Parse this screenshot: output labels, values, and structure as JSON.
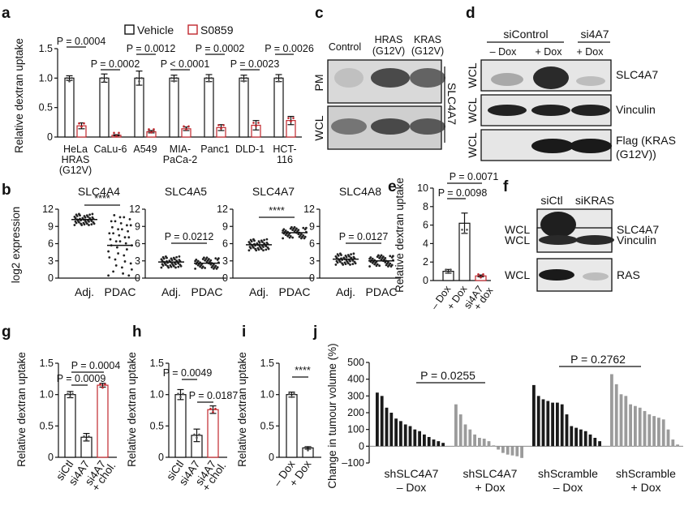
{
  "panels": {
    "a": {
      "label": "a",
      "ylabel": "Relative dextran uptake",
      "legend": [
        "Vehicle",
        "S0859"
      ],
      "yticks": [
        "0",
        "0.5",
        "1.0",
        "1.5"
      ],
      "categories": [
        "HeLa\nHRAS\n(G12V)",
        "CaLu-6",
        "A549",
        "MIA-\nPaCa-2",
        "Panc1",
        "DLD-1",
        "HCT-\n116"
      ],
      "pvalues": [
        "P = 0.0004",
        "P = 0.0002",
        "P = 0.0012",
        "P < 0.0001",
        "P = 0.0002",
        "P = 0.0023",
        "P = 0.0026"
      ]
    },
    "b": {
      "label": "b",
      "ylabel": "log2 expression",
      "genes": [
        "SLC4A4",
        "SLC4A5",
        "SLC4A7",
        "SLC4A8"
      ],
      "xcats": [
        "Adj.",
        "PDAC"
      ],
      "yticks": [
        "0",
        "3",
        "6",
        "9",
        "12"
      ],
      "pvalues": [
        "****",
        "P = 0.0212",
        "****",
        "P = 0.0127"
      ]
    },
    "c": {
      "label": "c",
      "cols": [
        "Control",
        "HRAS\n(G12V)",
        "KRAS\n(G12V)"
      ],
      "rows": [
        "PM",
        "WCL"
      ],
      "protein": "SLC4A7"
    },
    "d": {
      "label": "d",
      "groups": [
        "siControl",
        "si4A7"
      ],
      "cols": [
        "– Dox",
        "+ Dox",
        "+ Dox"
      ],
      "rows": [
        "WCL",
        "WCL",
        "WCL"
      ],
      "proteins": [
        "SLC4A7",
        "Vinculin",
        "Flag (KRAS\n(G12V))"
      ]
    },
    "e": {
      "label": "e",
      "ylabel": "Relative dextran uptake",
      "yticks": [
        "0",
        "2",
        "4",
        "6",
        "8",
        "10"
      ],
      "categories": [
        "– Dox",
        "+ Dox",
        "si4A7\n+ dox"
      ],
      "pvalues": [
        "P = 0.0071",
        "P = 0.0098"
      ]
    },
    "f": {
      "label": "f",
      "cols": [
        "siCtl",
        "siKRAS"
      ],
      "rows": [
        "WCL",
        "WCL",
        "WCL"
      ],
      "proteins": [
        "SLC4A7",
        "Vinculin",
        "RAS"
      ]
    },
    "g": {
      "label": "g",
      "ylabel": "Relative dextran uptake",
      "yticks": [
        "0",
        "0.5",
        "1.0",
        "1.5"
      ],
      "categories": [
        "siCtl",
        "si4A7",
        "si4A7\n+ chol."
      ],
      "pvalues": [
        "P = 0.0004",
        "P = 0.0009"
      ]
    },
    "h": {
      "label": "h",
      "ylabel": "Relative dextran uptake",
      "yticks": [
        "0",
        "0.5",
        "1.0",
        "1.5"
      ],
      "categories": [
        "siCtl",
        "si4A7",
        "si4A7\n+ chol."
      ],
      "pvalues": [
        "P = 0.0049",
        "P = 0.0187"
      ]
    },
    "i": {
      "label": "i",
      "ylabel": "Relative dextran uptake",
      "yticks": [
        "0",
        "0.5",
        "1.0",
        "1.5"
      ],
      "categories": [
        "– Dox",
        "+ Dox"
      ],
      "pvalues": [
        "****"
      ]
    },
    "j": {
      "label": "j",
      "ylabel": "Change in tumour volume (%)",
      "yticks": [
        "–100",
        "0",
        "100",
        "200",
        "300",
        "400",
        "500"
      ],
      "groups": [
        "shSLC4A7\n– Dox",
        "shSLC4A7\n+ Dox",
        "shScramble\n– Dox",
        "shScramble\n+ Dox"
      ],
      "pvalues": [
        "P = 0.0255",
        "P = 0.2762"
      ]
    }
  },
  "colors": {
    "vehicle": "#111111",
    "treated": "#c0272d",
    "gray": "#9b9b9b"
  },
  "chart_data": [
    {
      "panel": "a",
      "type": "bar",
      "categories": [
        "HeLa HRAS (G12V)",
        "CaLu-6",
        "A549",
        "MIA-PaCa-2",
        "Panc1",
        "DLD-1",
        "HCT-116"
      ],
      "ylim": [
        0,
        1.5
      ],
      "series": [
        {
          "name": "Vehicle",
          "values": [
            1.0,
            1.0,
            1.0,
            1.0,
            1.0,
            1.0,
            1.0
          ],
          "err": [
            0.04,
            0.07,
            0.12,
            0.05,
            0.06,
            0.05,
            0.06
          ]
        },
        {
          "name": "S0859",
          "values": [
            0.19,
            0.03,
            0.09,
            0.14,
            0.16,
            0.2,
            0.28
          ],
          "err": [
            0.05,
            0.01,
            0.02,
            0.03,
            0.05,
            0.08,
            0.07
          ]
        }
      ]
    },
    {
      "panel": "b",
      "type": "scatter",
      "ylim": [
        0,
        12
      ],
      "groups": [
        {
          "gene": "SLC4A4",
          "adj_mean": 10.2,
          "pdac_mean": 5.7
        },
        {
          "gene": "SLC4A5",
          "adj_mean": 2.8,
          "pdac_mean": 2.6
        },
        {
          "gene": "SLC4A7",
          "adj_mean": 5.8,
          "pdac_mean": 7.9
        },
        {
          "gene": "SLC4A8",
          "adj_mean": 3.3,
          "pdac_mean": 3.0
        }
      ]
    },
    {
      "panel": "e",
      "type": "bar",
      "categories": [
        "– Dox",
        "+ Dox",
        "si4A7 + dox"
      ],
      "ylim": [
        0,
        10
      ],
      "values": [
        1.0,
        6.2,
        0.5
      ],
      "err": [
        0.2,
        1.1,
        0.1
      ]
    },
    {
      "panel": "g",
      "type": "bar",
      "categories": [
        "siCtl",
        "si4A7",
        "si4A7 + chol."
      ],
      "ylim": [
        0,
        1.5
      ],
      "values": [
        1.0,
        0.32,
        1.15
      ],
      "err": [
        0.05,
        0.06,
        0.03
      ]
    },
    {
      "panel": "h",
      "type": "bar",
      "categories": [
        "siCtl",
        "si4A7",
        "si4A7 + chol."
      ],
      "ylim": [
        0,
        1.5
      ],
      "values": [
        1.0,
        0.35,
        0.76
      ],
      "err": [
        0.08,
        0.1,
        0.06
      ]
    },
    {
      "panel": "i",
      "type": "bar",
      "categories": [
        "– Dox",
        "+ Dox"
      ],
      "ylim": [
        0,
        1.5
      ],
      "values": [
        1.0,
        0.15
      ],
      "err": [
        0.04,
        0.02
      ]
    },
    {
      "panel": "j",
      "type": "bar",
      "ylim": [
        -100,
        500
      ],
      "series": [
        {
          "name": "shSLC4A7 – Dox",
          "values": [
            320,
            300,
            230,
            200,
            165,
            150,
            130,
            120,
            100,
            90,
            70,
            55,
            40,
            30,
            20
          ]
        },
        {
          "name": "shSLC4A7 + Dox",
          "values": [
            250,
            190,
            130,
            100,
            70,
            50,
            45,
            30,
            5,
            -20,
            -40,
            -50,
            -55,
            -60,
            -70
          ]
        },
        {
          "name": "shScramble – Dox",
          "values": [
            365,
            300,
            280,
            270,
            260,
            260,
            250,
            190,
            120,
            110,
            100,
            90,
            70,
            50,
            30
          ]
        },
        {
          "name": "shScramble + Dox",
          "values": [
            430,
            370,
            310,
            300,
            250,
            240,
            230,
            210,
            190,
            180,
            170,
            160,
            100,
            40,
            10
          ]
        }
      ]
    }
  ]
}
